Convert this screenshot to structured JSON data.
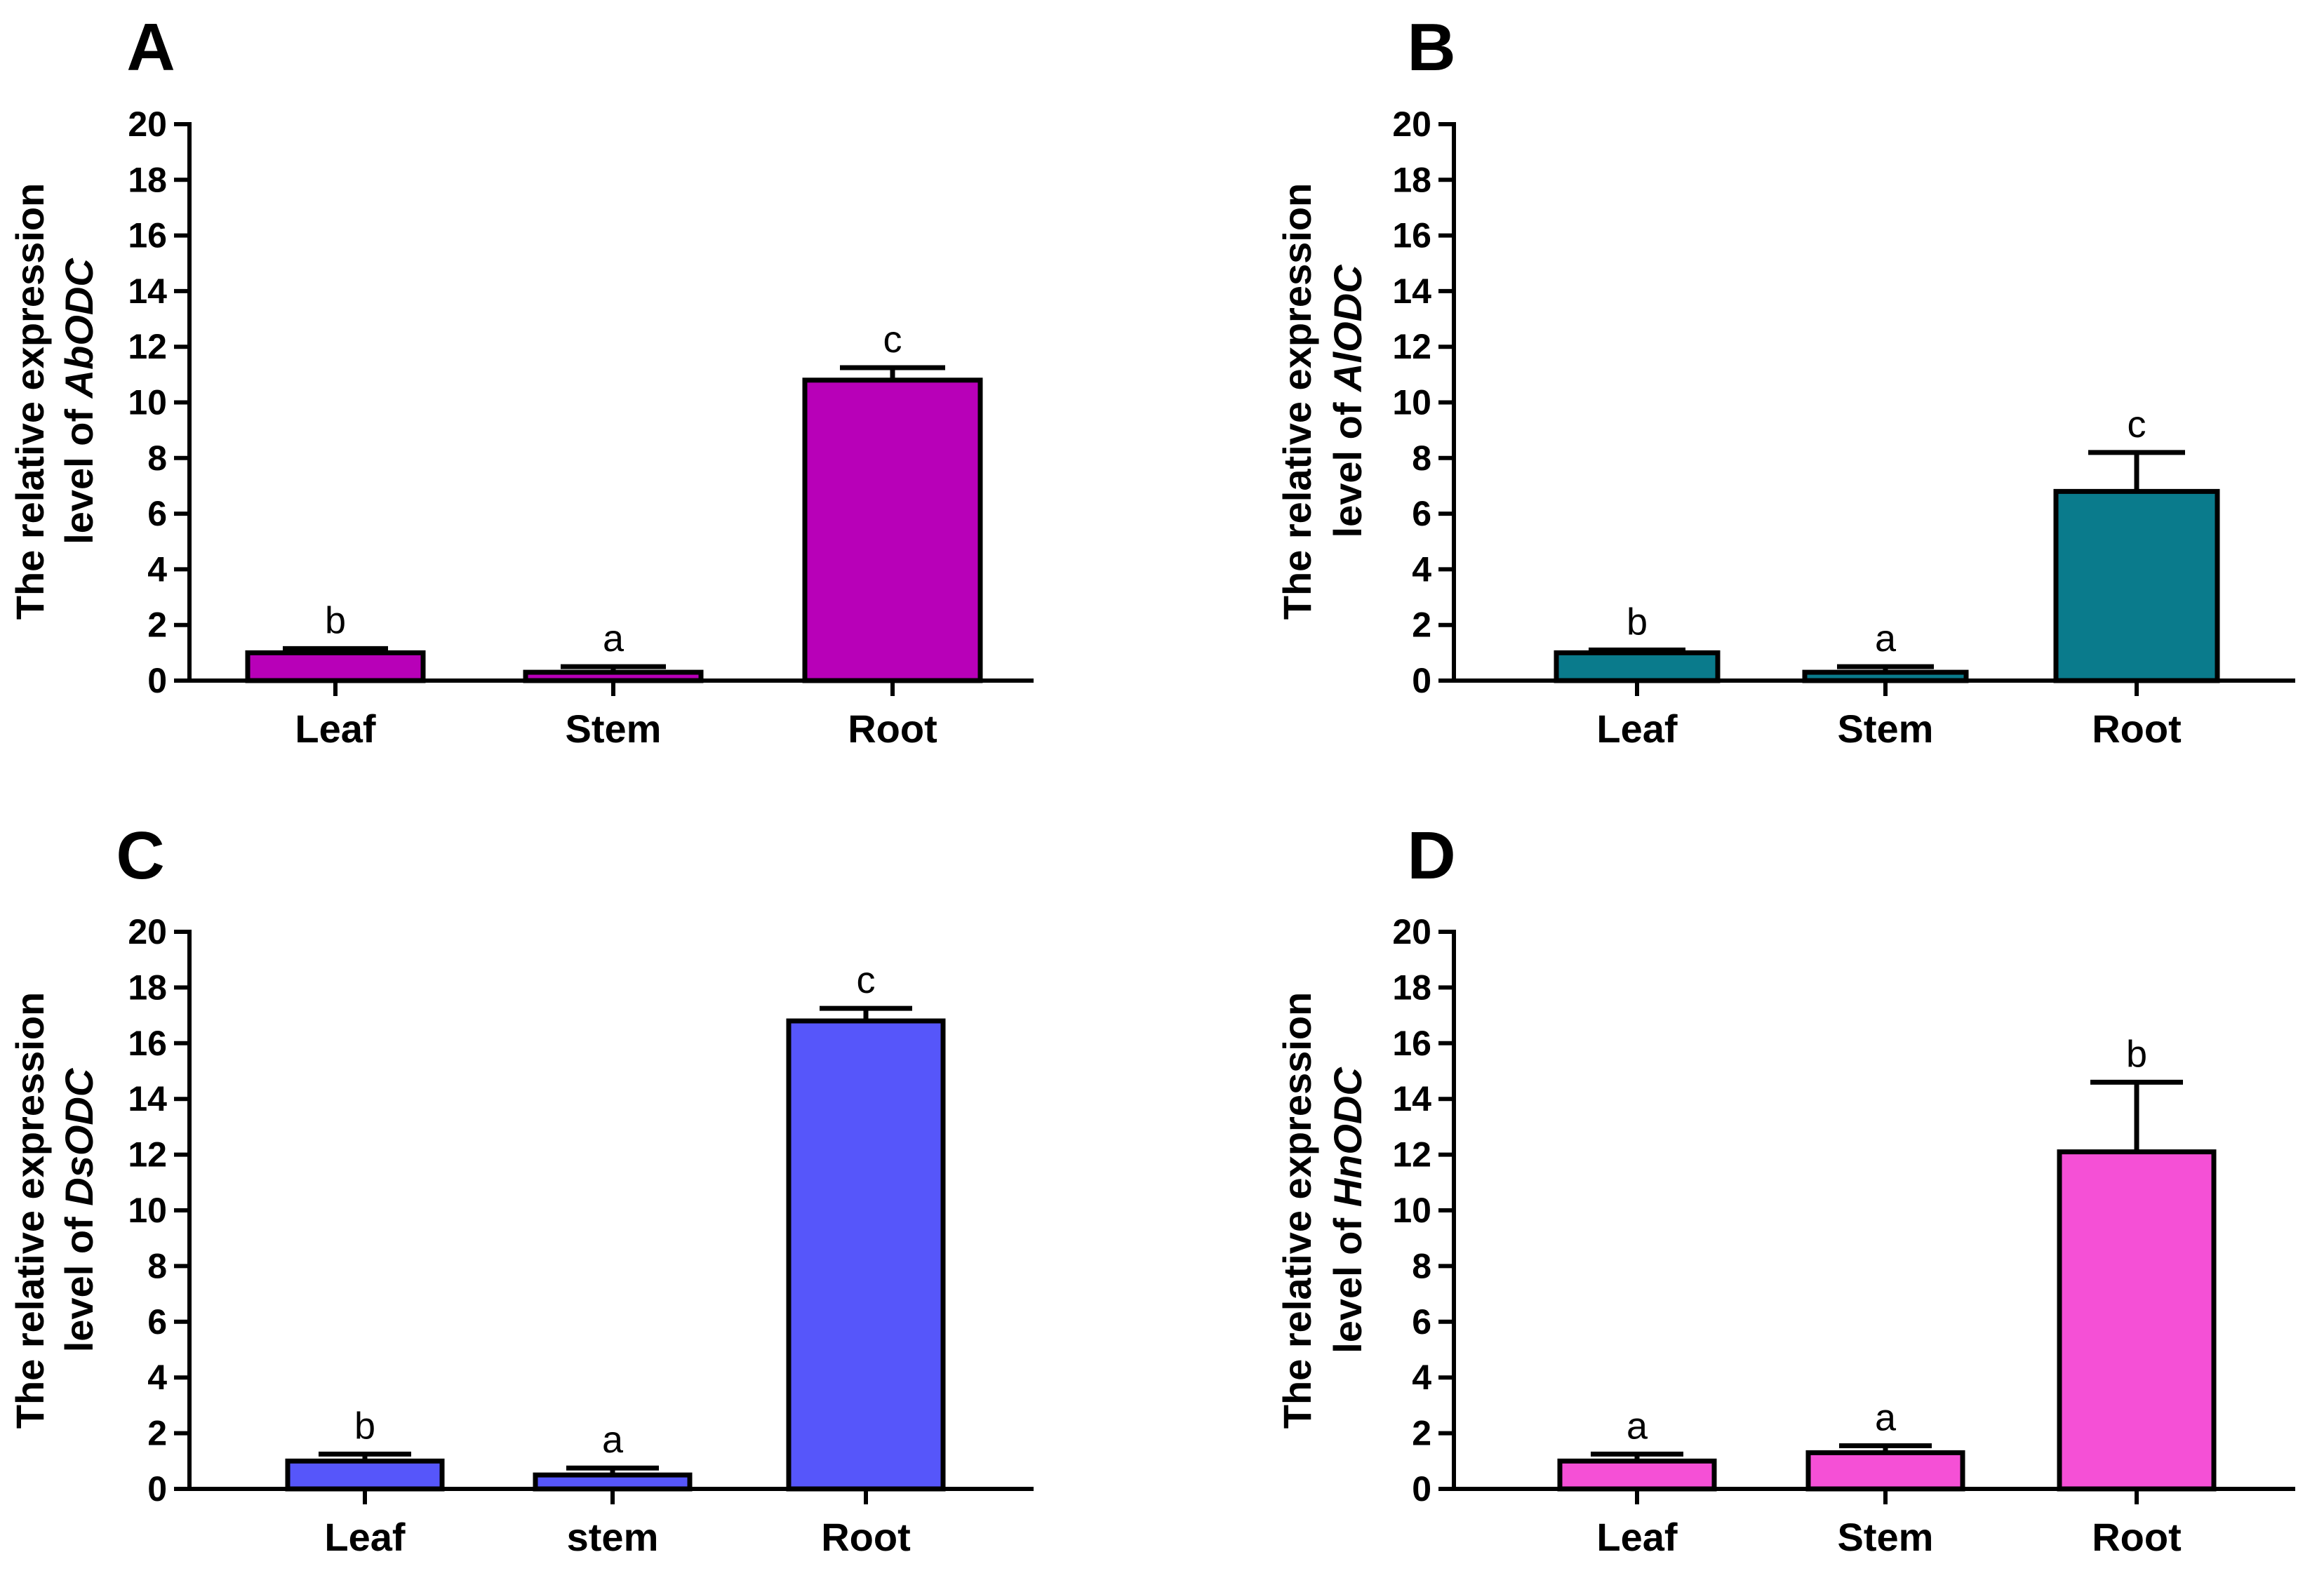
{
  "chart_data": [
    {
      "type": "bar",
      "panel": "A",
      "ylabel_line1": "The relative expression",
      "ylabel_prefix": "level of ",
      "ylabel_gene": "AbODC",
      "ylim": [
        0,
        20
      ],
      "yticks": [
        0,
        2,
        4,
        6,
        8,
        10,
        12,
        14,
        16,
        18,
        20
      ],
      "categories": [
        "Leaf",
        "Stem",
        "Root"
      ],
      "values": [
        1.0,
        0.3,
        10.8
      ],
      "errors": [
        0.15,
        0.2,
        0.45
      ],
      "significance": [
        "b",
        "a",
        "c"
      ],
      "color": "#b800b8"
    },
    {
      "type": "bar",
      "panel": "B",
      "ylabel_line1": "The relative expression",
      "ylabel_prefix": "level of ",
      "ylabel_gene": "AlODC",
      "ylim": [
        0,
        20
      ],
      "yticks": [
        0,
        2,
        4,
        6,
        8,
        10,
        12,
        14,
        16,
        18,
        20
      ],
      "categories": [
        "Leaf",
        "Stem",
        "Root"
      ],
      "values": [
        1.0,
        0.3,
        6.8
      ],
      "errors": [
        0.1,
        0.2,
        1.4
      ],
      "significance": [
        "b",
        "a",
        "c"
      ],
      "color": "#0a7b8c"
    },
    {
      "type": "bar",
      "panel": "C",
      "ylabel_line1": "The relative expression",
      "ylabel_prefix": "level of ",
      "ylabel_gene": "DsODC",
      "ylim": [
        0,
        20
      ],
      "yticks": [
        0,
        2,
        4,
        6,
        8,
        10,
        12,
        14,
        16,
        18,
        20
      ],
      "categories": [
        "Leaf",
        "stem",
        "Root"
      ],
      "values": [
        1.0,
        0.5,
        16.8
      ],
      "errors": [
        0.25,
        0.25,
        0.45
      ],
      "significance": [
        "b",
        "a",
        "c"
      ],
      "color": "#5656fa"
    },
    {
      "type": "bar",
      "panel": "D",
      "ylabel_line1": "The relative expression",
      "ylabel_prefix": "level of ",
      "ylabel_gene": "HnODC",
      "ylim": [
        0,
        20
      ],
      "yticks": [
        0,
        2,
        4,
        6,
        8,
        10,
        12,
        14,
        16,
        18,
        20
      ],
      "categories": [
        "Leaf",
        "Stem",
        "Root"
      ],
      "values": [
        1.0,
        1.3,
        12.1
      ],
      "errors": [
        0.25,
        0.25,
        2.5
      ],
      "significance": [
        "a",
        "a",
        "b"
      ],
      "color": "#f550d6"
    }
  ]
}
